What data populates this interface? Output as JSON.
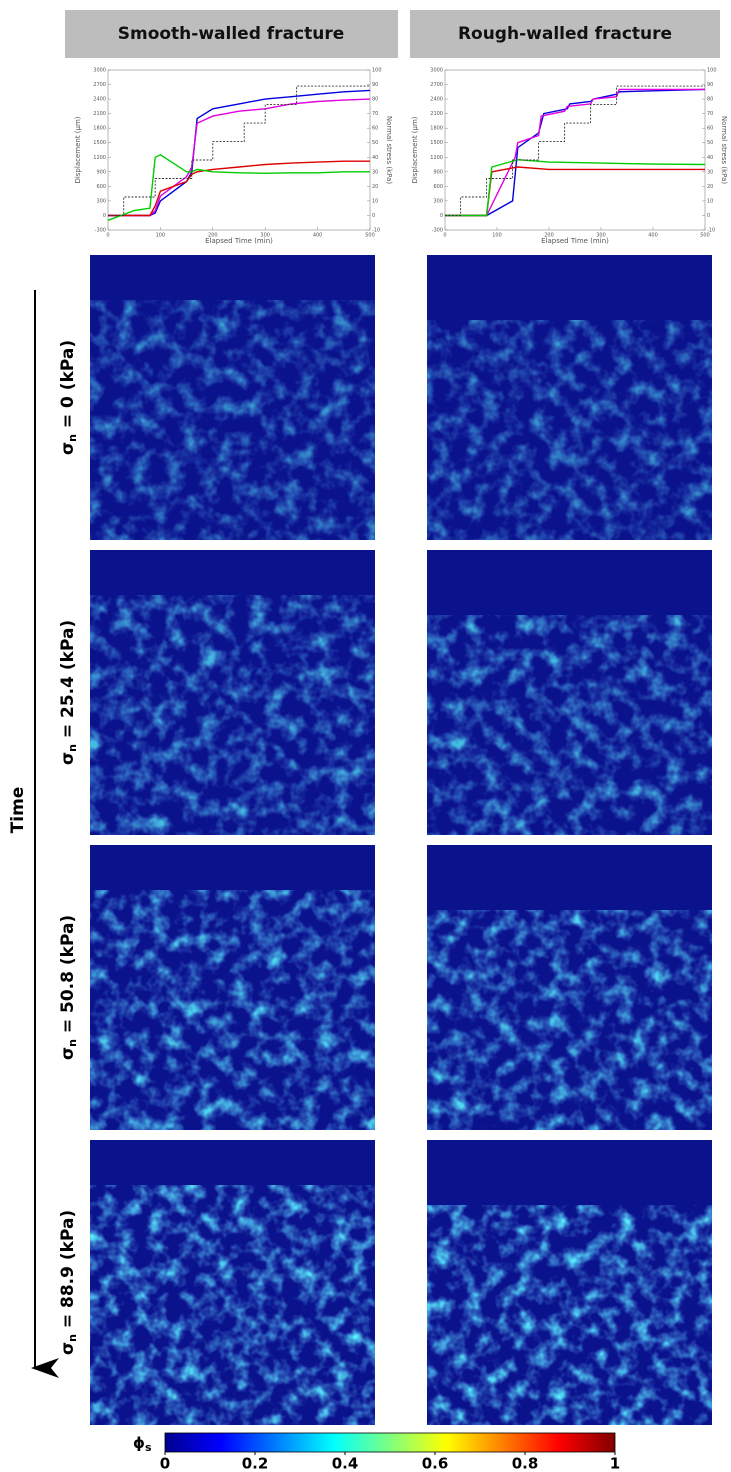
{
  "headers": [
    "Smooth-walled fracture",
    "Rough-walled fracture"
  ],
  "chart_data": [
    {
      "type": "line",
      "xlabel": "Elapsed Time (min)",
      "ylabel": "Displacement (μm)",
      "y2label": "Normal stress (kPa)",
      "xlim": [
        0,
        500
      ],
      "xticks": [
        0,
        100,
        200,
        300,
        400,
        500
      ],
      "ylim": [
        -300,
        3000
      ],
      "yticks": [
        -300,
        0,
        300,
        600,
        900,
        1200,
        1500,
        1800,
        2100,
        2400,
        2700,
        3000
      ],
      "y2lim": [
        -10,
        100
      ],
      "y2ticks": [
        -10,
        0,
        10,
        20,
        30,
        40,
        50,
        60,
        70,
        80,
        90,
        100
      ],
      "series": [
        {
          "color": "#0000dd",
          "x": [
            0,
            50,
            80,
            90,
            100,
            150,
            160,
            170,
            200,
            250,
            300,
            350,
            400,
            450,
            500
          ],
          "values": [
            0,
            0,
            0,
            50,
            300,
            700,
            900,
            2000,
            2200,
            2300,
            2400,
            2450,
            2500,
            2550,
            2580
          ]
        },
        {
          "color": "#e000e0",
          "x": [
            0,
            50,
            80,
            90,
            100,
            150,
            160,
            170,
            200,
            250,
            300,
            350,
            400,
            450,
            500
          ],
          "values": [
            0,
            0,
            0,
            100,
            400,
            800,
            1000,
            1900,
            2050,
            2150,
            2200,
            2300,
            2350,
            2380,
            2400
          ]
        },
        {
          "color": "#dd0000",
          "x": [
            0,
            50,
            80,
            90,
            100,
            150,
            160,
            170,
            200,
            250,
            300,
            350,
            400,
            450,
            500
          ],
          "values": [
            0,
            0,
            0,
            200,
            500,
            700,
            850,
            900,
            950,
            1000,
            1050,
            1080,
            1100,
            1120,
            1120
          ]
        },
        {
          "color": "#00cc00",
          "x": [
            0,
            50,
            80,
            90,
            100,
            150,
            160,
            170,
            200,
            250,
            300,
            350,
            400,
            450,
            500
          ],
          "values": [
            -100,
            100,
            150,
            1200,
            1250,
            900,
            900,
            950,
            900,
            880,
            870,
            880,
            880,
            900,
            900
          ]
        },
        {
          "color": "#333333",
          "axis": "y2",
          "dashed": true,
          "x": [
            0,
            30,
            30,
            90,
            90,
            160,
            160,
            200,
            200,
            260,
            260,
            300,
            300,
            360,
            360,
            500
          ],
          "values": [
            0,
            0,
            12.7,
            12.7,
            25.4,
            25.4,
            38.1,
            38.1,
            50.8,
            50.8,
            63.5,
            63.5,
            76.2,
            76.2,
            88.9,
            88.9
          ]
        }
      ]
    },
    {
      "type": "line",
      "xlabel": "Elapsed Time (min)",
      "ylabel": "Displacement (μm)",
      "y2label": "Normal stress (kPa)",
      "xlim": [
        0,
        500
      ],
      "xticks": [
        0,
        100,
        200,
        300,
        400,
        500
      ],
      "ylim": [
        -300,
        3000
      ],
      "yticks": [
        -300,
        0,
        300,
        600,
        900,
        1200,
        1500,
        1800,
        2100,
        2400,
        2700,
        3000
      ],
      "y2lim": [
        -10,
        100
      ],
      "y2ticks": [
        -10,
        0,
        10,
        20,
        30,
        40,
        50,
        60,
        70,
        80,
        90,
        100
      ],
      "series": [
        {
          "color": "#0000dd",
          "x": [
            0,
            80,
            130,
            140,
            180,
            190,
            235,
            240,
            280,
            285,
            330,
            335,
            500
          ],
          "values": [
            0,
            0,
            300,
            1400,
            1700,
            2100,
            2200,
            2300,
            2350,
            2400,
            2500,
            2550,
            2600
          ]
        },
        {
          "color": "#e000e0",
          "x": [
            0,
            80,
            135,
            140,
            180,
            185,
            230,
            235,
            280,
            285,
            330,
            335,
            500
          ],
          "values": [
            0,
            0,
            1200,
            1500,
            1650,
            2050,
            2150,
            2250,
            2300,
            2400,
            2450,
            2600,
            2600
          ]
        },
        {
          "color": "#dd0000",
          "x": [
            0,
            80,
            90,
            140,
            200,
            300,
            400,
            500
          ],
          "values": [
            0,
            0,
            900,
            1000,
            950,
            950,
            950,
            950
          ]
        },
        {
          "color": "#00cc00",
          "x": [
            0,
            80,
            90,
            140,
            200,
            300,
            400,
            500
          ],
          "values": [
            0,
            0,
            1000,
            1150,
            1100,
            1080,
            1060,
            1050
          ]
        },
        {
          "color": "#333333",
          "axis": "y2",
          "dashed": true,
          "x": [
            0,
            30,
            30,
            80,
            80,
            130,
            130,
            180,
            180,
            230,
            230,
            280,
            280,
            330,
            330,
            500
          ],
          "values": [
            0,
            0,
            12.7,
            12.7,
            25.4,
            25.4,
            38.1,
            38.1,
            50.8,
            50.8,
            63.5,
            63.5,
            76.2,
            76.2,
            88.9,
            88.9
          ]
        }
      ]
    }
  ],
  "row_labels": [
    {
      "symbol": "σ",
      "subscript": "n",
      "text": " = 0 (kPa)"
    },
    {
      "symbol": "σ",
      "subscript": "n",
      "text": " = 25.4 (kPa)"
    },
    {
      "symbol": "σ",
      "subscript": "n",
      "text": " = 50.8 (kPa)"
    },
    {
      "symbol": "σ",
      "subscript": "n",
      "text": " = 88.9 (kPa)"
    }
  ],
  "time_label": "Time",
  "colorbar": {
    "symbol": "ϕ",
    "subscript": "s",
    "lim": [
      0,
      1
    ],
    "ticks": [
      0,
      0.2,
      0.4,
      0.6,
      0.8,
      1
    ]
  }
}
